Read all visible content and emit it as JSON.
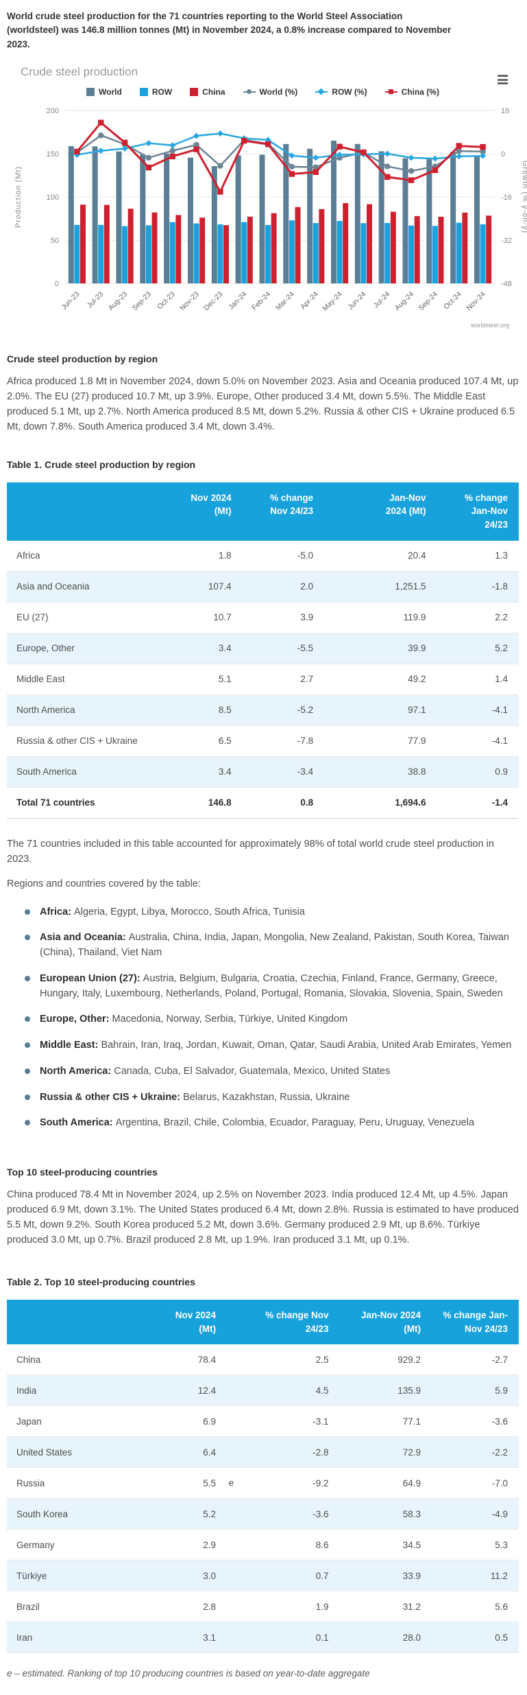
{
  "theme": {
    "accent": "#18a2dc",
    "row_alt": "#e7f4fb"
  },
  "intro": "World crude steel production for the 71 countries reporting to the World Steel Association (worldsteel) was 146.8 million tonnes (Mt) in November 2024, a 0.8% increase compared to November 2023.",
  "chart_data": {
    "type": "bar",
    "subtype": "grouped-column-with-lines",
    "title": "Crude steel production",
    "credit": "worldsteel.org",
    "grid": true,
    "legend_position": "top",
    "categories": [
      "Jun-23",
      "Jul-23",
      "Aug-23",
      "Sep-23",
      "Oct-23",
      "Nov-23",
      "Dec-23",
      "Jan-24",
      "Feb-24",
      "Mar-24",
      "Apr-24",
      "May-24",
      "Jun-24",
      "Jul-24",
      "Aug-24",
      "Sep-24",
      "Oct-24",
      "Nov-24"
    ],
    "bar_series": [
      {
        "name": "World",
        "color": "#5a7e96",
        "axis": "left",
        "values": [
          158.8,
          158.5,
          152.6,
          149.3,
          150.0,
          145.5,
          135.7,
          148.1,
          148.8,
          161.2,
          155.7,
          165.1,
          161.3,
          152.8,
          144.8,
          143.6,
          152.1,
          146.8
        ]
      },
      {
        "name": "ROW",
        "color": "#19a2dd",
        "axis": "left",
        "values": [
          67.7,
          67.7,
          66.2,
          67.2,
          70.9,
          69.4,
          68.3,
          70.9,
          67.6,
          72.9,
          69.8,
          72.2,
          69.7,
          69.9,
          66.9,
          66.5,
          70.2,
          68.4
        ]
      },
      {
        "name": "China",
        "color": "#ce2130",
        "axis": "left",
        "values": [
          91.1,
          90.8,
          86.4,
          82.1,
          79.1,
          76.1,
          67.4,
          77.2,
          81.2,
          88.3,
          85.9,
          92.9,
          91.6,
          82.9,
          77.9,
          77.1,
          81.9,
          78.4
        ]
      }
    ],
    "line_series": [
      {
        "name": "World (%)",
        "color": "#6d8494",
        "marker": "circle",
        "axis": "right",
        "values": [
          0.4,
          6.8,
          3.5,
          -1.5,
          1.1,
          3.3,
          -4.5,
          5.1,
          3.7,
          -4.8,
          -5.0,
          -1.5,
          0.5,
          -4.7,
          -6.4,
          -4.7,
          1.0,
          0.8
        ]
      },
      {
        "name": "ROW (%)",
        "color": "#2aa7e0",
        "marker": "diamond",
        "axis": "right",
        "values": [
          -0.4,
          1.1,
          1.9,
          3.9,
          3.1,
          6.6,
          7.5,
          5.7,
          5.1,
          -0.7,
          -1.5,
          -0.4,
          -0.2,
          0.0,
          -1.5,
          -1.8,
          -1.0,
          -0.8
        ]
      },
      {
        "name": "China (%)",
        "color": "#ce2130",
        "marker": "square",
        "axis": "right",
        "values": [
          0.8,
          11.5,
          4.1,
          -5.1,
          -1.0,
          1.6,
          -14.1,
          4.8,
          3.5,
          -7.5,
          -6.8,
          2.6,
          0.5,
          -8.6,
          -9.8,
          -6.1,
          2.9,
          2.5
        ]
      }
    ],
    "y_left": {
      "label": "Production (Mt)",
      "ticks": [
        0,
        50,
        100,
        150,
        200
      ],
      "range": [
        0,
        200
      ]
    },
    "y_right": {
      "label": "Growth (% y-on-y)",
      "ticks": [
        16,
        0,
        -16,
        -32,
        -48
      ],
      "range": [
        -48,
        16
      ]
    },
    "xlabel": "",
    "ylabel": "Production (Mt)"
  },
  "region_section": {
    "heading": "Crude steel production by region",
    "paragraph": "Africa produced 1.8 Mt in November 2024, down 5.0% on November 2023. Asia and Oceania produced 107.4 Mt, up 2.0%. The EU (27) produced 10.7 Mt, up 3.9%. Europe, Other produced 3.4 Mt, down 5.5%. The Middle East produced 5.1 Mt, up 2.7%. North America produced 8.5 Mt, down 5.2%. Russia & other CIS + Ukraine produced 6.5 Mt, down 7.8%. South America produced 3.4 Mt, down 3.4%."
  },
  "table1": {
    "title": "Table 1. Crude steel production by region",
    "headers": [
      "",
      "Nov 2024\n(Mt)",
      "% change\nNov 24/23",
      "Jan-Nov\n2024 (Mt)",
      "% change\nJan-Nov\n24/23"
    ],
    "rows": [
      {
        "label": "Africa",
        "cols": [
          "1.8",
          "-5.0",
          "20.4",
          "1.3"
        ]
      },
      {
        "label": "Asia and Oceania",
        "cols": [
          "107.4",
          "2.0",
          "1,251.5",
          "-1.8"
        ]
      },
      {
        "label": "EU (27)",
        "cols": [
          "10.7",
          "3.9",
          "119.9",
          "2.2"
        ]
      },
      {
        "label": "Europe, Other",
        "cols": [
          "3.4",
          "-5.5",
          "39.9",
          "5.2"
        ]
      },
      {
        "label": "Middle East",
        "cols": [
          "5.1",
          "2.7",
          "49.2",
          "1.4"
        ]
      },
      {
        "label": "North America",
        "cols": [
          "8.5",
          "-5.2",
          "97.1",
          "-4.1"
        ]
      },
      {
        "label": "Russia & other CIS + Ukraine",
        "cols": [
          "6.5",
          "-7.8",
          "77.9",
          "-4.1"
        ]
      },
      {
        "label": "South America",
        "cols": [
          "3.4",
          "-3.4",
          "38.8",
          "0.9"
        ]
      }
    ],
    "total": {
      "label": "Total 71 countries",
      "cols": [
        "146.8",
        "0.8",
        "1,694.6",
        "-1.4"
      ]
    }
  },
  "notes": {
    "coverage": "The 71 countries included in this table accounted for approximately 98% of total world crude steel production in 2023.",
    "regions_intro": "Regions and countries covered by the table:"
  },
  "regions": [
    {
      "label": "Africa:",
      "countries": "Algeria, Egypt, Libya, Morocco, South Africa, Tunisia"
    },
    {
      "label": "Asia and Oceania:",
      "countries": "Australia, China, India, Japan, Mongolia, New Zealand, Pakistan, South Korea, Taiwan (China), Thailand, Viet Nam"
    },
    {
      "label": "European Union (27):",
      "countries": "Austria, Belgium, Bulgaria, Croatia, Czechia, Finland, France, Germany, Greece, Hungary, Italy, Luxembourg, Netherlands, Poland, Portugal, Romania, Slovakia, Slovenia, Spain, Sweden"
    },
    {
      "label": "Europe, Other:",
      "countries": "Macedonia, Norway, Serbia, Türkiye, United Kingdom"
    },
    {
      "label": "Middle East:",
      "countries": "Bahrain, Iran, Iraq, Jordan, Kuwait, Oman, Qatar, Saudi Arabia, United Arab Emirates, Yemen"
    },
    {
      "label": "North America:",
      "countries": "Canada, Cuba, El Salvador, Guatemala, Mexico, United States"
    },
    {
      "label": "Russia & other CIS + Ukraine:",
      "countries": "Belarus, Kazakhstan, Russia, Ukraine"
    },
    {
      "label": "South America:",
      "countries": "Argentina, Brazil, Chile, Colombia, Ecuador, Paraguay, Peru, Uruguay, Venezuela"
    }
  ],
  "top10_section": {
    "heading": "Top 10 steel-producing countries",
    "paragraph": "China produced 78.4 Mt in November 2024, up 2.5% on November 2023. India produced 12.4 Mt, up 4.5%. Japan produced 6.9 Mt, down 3.1%. The United States produced 6.4 Mt, down 2.8%. Russia is estimated to have produced 5.5 Mt, down 9.2%. South Korea produced 5.2 Mt, down 3.6%. Germany produced 2.9 Mt, up 8.6%. Türkiye produced 3.0 Mt, up 0.7%. Brazil produced 2.8 Mt, up 1.9%. Iran produced 3.1 Mt, up 0.1%."
  },
  "table2": {
    "title": "Table 2. Top 10 steel-producing countries",
    "headers": [
      "",
      "Nov 2024\n(Mt)",
      "% change Nov\n24/23",
      "Jan-Nov 2024\n(Mt)",
      "% change Jan-\nNov 24/23"
    ],
    "rows": [
      {
        "label": "China",
        "nov": "78.4",
        "est": "",
        "cols": [
          "2.5",
          "929.2",
          "-2.7"
        ]
      },
      {
        "label": "India",
        "nov": "12.4",
        "est": "",
        "cols": [
          "4.5",
          "135.9",
          "5.9"
        ]
      },
      {
        "label": "Japan",
        "nov": "6.9",
        "est": "",
        "cols": [
          "-3.1",
          "77.1",
          "-3.6"
        ]
      },
      {
        "label": "United States",
        "nov": "6.4",
        "est": "",
        "cols": [
          "-2.8",
          "72.9",
          "-2.2"
        ]
      },
      {
        "label": "Russia",
        "nov": "5.5",
        "est": "e",
        "cols": [
          "-9.2",
          "64.9",
          "-7.0"
        ]
      },
      {
        "label": "South Korea",
        "nov": "5.2",
        "est": "",
        "cols": [
          "-3.6",
          "58.3",
          "-4.9"
        ]
      },
      {
        "label": "Germany",
        "nov": "2.9",
        "est": "",
        "cols": [
          "8.6",
          "34.5",
          "5.3"
        ]
      },
      {
        "label": "Türkiye",
        "nov": "3.0",
        "est": "",
        "cols": [
          "0.7",
          "33.9",
          "11.2"
        ]
      },
      {
        "label": "Brazil",
        "nov": "2.8",
        "est": "",
        "cols": [
          "1.9",
          "31.2",
          "5.6"
        ]
      },
      {
        "label": "Iran",
        "nov": "3.1",
        "est": "",
        "cols": [
          "0.1",
          "28.0",
          "0.5"
        ]
      }
    ]
  },
  "footnote": "e – estimated. Ranking of top 10 producing countries is based on year-to-date aggregate"
}
